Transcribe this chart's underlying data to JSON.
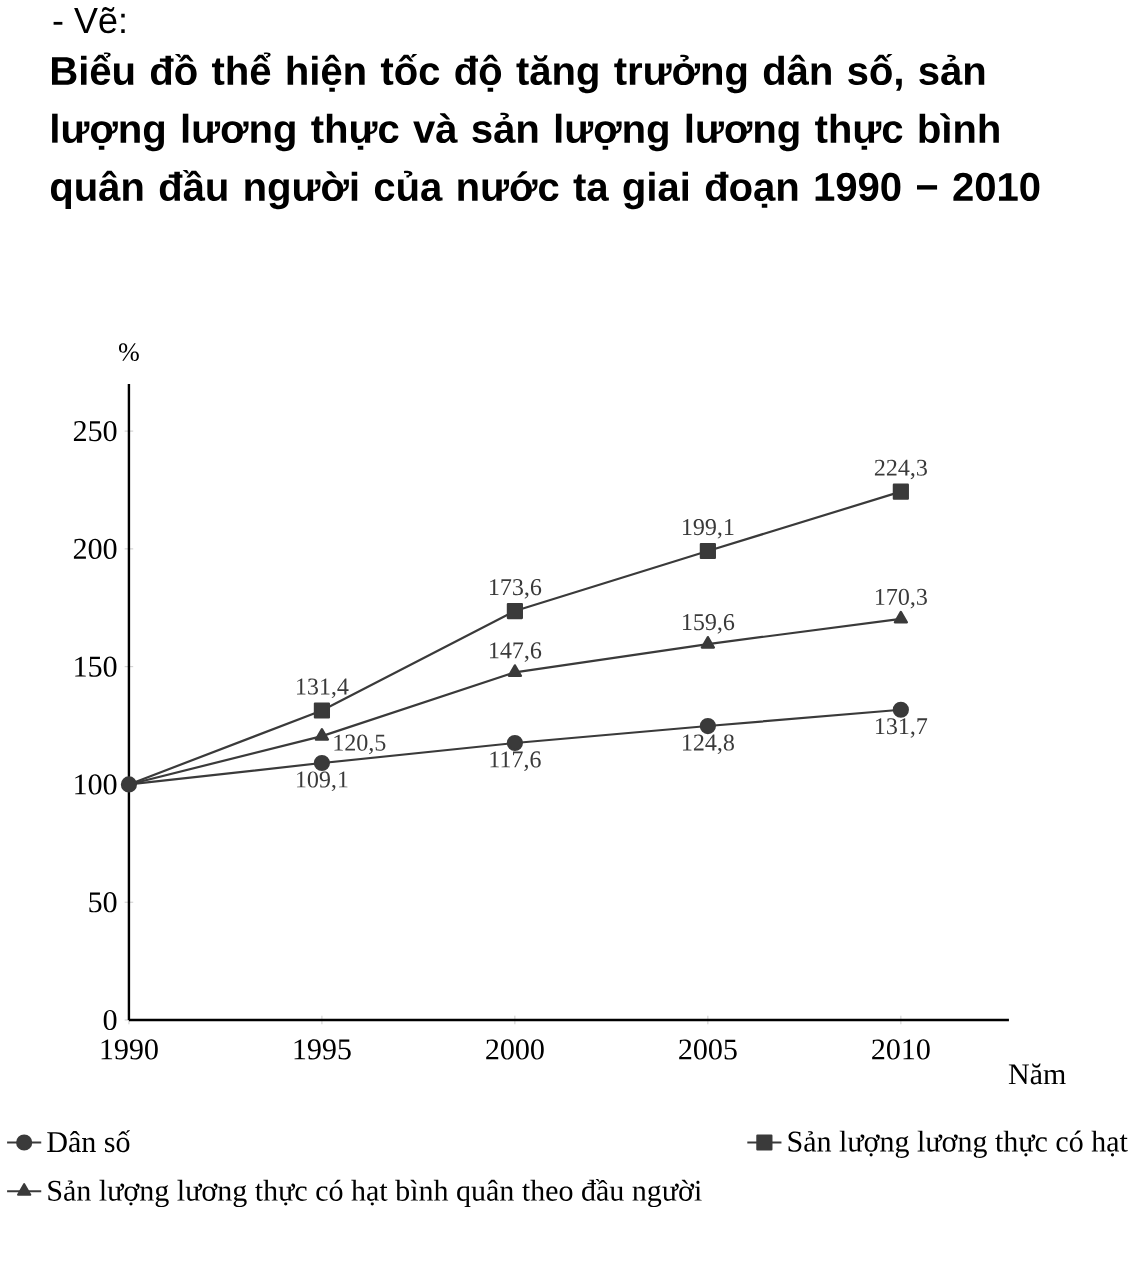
{
  "chart_data": {
    "type": "line",
    "title": "Biểu đồ thể hiện tốc độ tăng trưởng dân số, sản lượng lương thực và sản lượng lương thực bình quân đầu người của nước ta giai đoạn 1990 − 2010",
    "annotations": [
      "- Vẽ:"
    ],
    "xlabel": "Năm",
    "ylabel": "%",
    "x": [
      1990,
      1995,
      2000,
      2005,
      2010
    ],
    "xlim": [
      1990,
      2012.8
    ],
    "xticks": [
      1990,
      1995,
      2000,
      2005,
      2010
    ],
    "ylim": [
      0,
      270
    ],
    "yticks": [
      0,
      50,
      100,
      150,
      200,
      250
    ],
    "legend": "bottom",
    "series": [
      {
        "name": "Dân số",
        "color": "#3a3a3a",
        "marker": "circle",
        "values": [
          100,
          109.1,
          117.6,
          124.8,
          131.7
        ],
        "value_labels": [
          null,
          "109,1",
          "117,6",
          "124,8",
          "131,7"
        ]
      },
      {
        "name": "Sản lượng lương thực có hạt",
        "color": "#3a3a3a",
        "marker": "square",
        "values": [
          100,
          131.4,
          173.6,
          199.1,
          224.3
        ],
        "value_labels": [
          null,
          "131,4",
          "173,6",
          "199,1",
          "224,3"
        ]
      },
      {
        "name": "Sản lượng lương thực có hạt bình quân theo đầu người",
        "color": "#3a3a3a",
        "marker": "triangle",
        "values": [
          100,
          120.5,
          147.6,
          159.6,
          170.3
        ],
        "value_labels": [
          null,
          "120,5",
          "147,6",
          "159,6",
          "170,3"
        ]
      }
    ]
  }
}
